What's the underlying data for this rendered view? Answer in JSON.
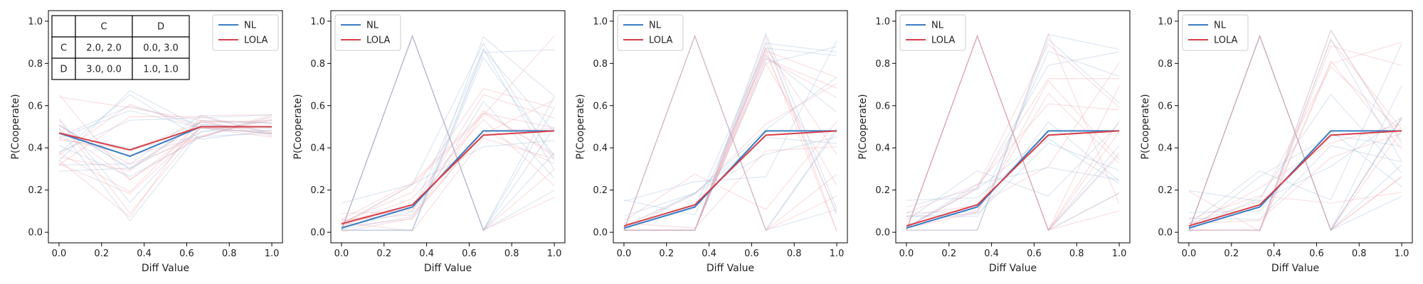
{
  "colors": {
    "nl": "#3a7dc2",
    "lola": "#d6404a",
    "axis": "#000000",
    "faint_nl": "#9bb8d8",
    "faint_lola": "#f0a0a8"
  },
  "chart_data": [
    {
      "type": "line",
      "title": "",
      "xlabel": "Diff Value",
      "ylabel": "P(Cooperate)",
      "xlim": [
        -0.05,
        1.05
      ],
      "ylim": [
        -0.05,
        1.05
      ],
      "xticks": [
        "0.0",
        "0.2",
        "0.4",
        "0.6",
        "0.8",
        "1.0"
      ],
      "yticks": [
        "0.0",
        "0.2",
        "0.4",
        "0.6",
        "0.8",
        "1.0"
      ],
      "grid": false,
      "legend": "top-right",
      "x": [
        0.0,
        0.3333,
        0.6667,
        1.0
      ],
      "series": [
        {
          "name": "NL",
          "values": [
            0.47,
            0.36,
            0.5,
            0.5
          ]
        },
        {
          "name": "LOLA",
          "values": [
            0.47,
            0.39,
            0.5,
            0.5
          ]
        }
      ],
      "payoff_table": {
        "col_headers": [
          "C",
          "D"
        ],
        "rows": [
          {
            "label": "C",
            "cells": [
              "2.0, 2.0",
              "0.0, 3.0"
            ]
          },
          {
            "label": "D",
            "cells": [
              "3.0, 0.0",
              "1.0, 1.0"
            ]
          }
        ]
      }
    },
    {
      "type": "line",
      "title": "",
      "xlabel": "Diff Value",
      "ylabel": "P(Cooperate)",
      "xlim": [
        -0.05,
        1.05
      ],
      "ylim": [
        -0.05,
        1.05
      ],
      "xticks": [
        "0.0",
        "0.2",
        "0.4",
        "0.6",
        "0.8",
        "1.0"
      ],
      "yticks": [
        "0.0",
        "0.2",
        "0.4",
        "0.6",
        "0.8",
        "1.0"
      ],
      "grid": false,
      "legend": "top-left",
      "x": [
        0.0,
        0.3333,
        0.6667,
        1.0
      ],
      "series": [
        {
          "name": "NL",
          "values": [
            0.02,
            0.12,
            0.48,
            0.48
          ]
        },
        {
          "name": "LOLA",
          "values": [
            0.04,
            0.13,
            0.46,
            0.48
          ]
        }
      ]
    },
    {
      "type": "line",
      "title": "",
      "xlabel": "Diff Value",
      "ylabel": "P(Cooperate)",
      "xlim": [
        -0.05,
        1.05
      ],
      "ylim": [
        -0.05,
        1.05
      ],
      "xticks": [
        "0.0",
        "0.2",
        "0.4",
        "0.6",
        "0.8",
        "1.0"
      ],
      "yticks": [
        "0.0",
        "0.2",
        "0.4",
        "0.6",
        "0.8",
        "1.0"
      ],
      "grid": false,
      "legend": "top-left",
      "x": [
        0.0,
        0.3333,
        0.6667,
        1.0
      ],
      "series": [
        {
          "name": "NL",
          "values": [
            0.02,
            0.12,
            0.48,
            0.48
          ]
        },
        {
          "name": "LOLA",
          "values": [
            0.03,
            0.13,
            0.46,
            0.48
          ]
        }
      ]
    },
    {
      "type": "line",
      "title": "",
      "xlabel": "Diff Value",
      "ylabel": "P(Cooperate)",
      "xlim": [
        -0.05,
        1.05
      ],
      "ylim": [
        -0.05,
        1.05
      ],
      "xticks": [
        "0.0",
        "0.2",
        "0.4",
        "0.6",
        "0.8",
        "1.0"
      ],
      "yticks": [
        "0.0",
        "0.2",
        "0.4",
        "0.6",
        "0.8",
        "1.0"
      ],
      "grid": false,
      "legend": "top-left",
      "x": [
        0.0,
        0.3333,
        0.6667,
        1.0
      ],
      "series": [
        {
          "name": "NL",
          "values": [
            0.02,
            0.12,
            0.48,
            0.48
          ]
        },
        {
          "name": "LOLA",
          "values": [
            0.03,
            0.13,
            0.46,
            0.48
          ]
        }
      ]
    },
    {
      "type": "line",
      "title": "",
      "xlabel": "Diff Value",
      "ylabel": "P(Cooperate)",
      "xlim": [
        -0.05,
        1.05
      ],
      "ylim": [
        -0.05,
        1.05
      ],
      "xticks": [
        "0.0",
        "0.2",
        "0.4",
        "0.6",
        "0.8",
        "1.0"
      ],
      "yticks": [
        "0.0",
        "0.2",
        "0.4",
        "0.6",
        "0.8",
        "1.0"
      ],
      "grid": false,
      "legend": "top-left",
      "x": [
        0.0,
        0.3333,
        0.6667,
        1.0
      ],
      "series": [
        {
          "name": "NL",
          "values": [
            0.02,
            0.12,
            0.48,
            0.48
          ]
        },
        {
          "name": "LOLA",
          "values": [
            0.03,
            0.13,
            0.46,
            0.48
          ]
        }
      ]
    }
  ]
}
